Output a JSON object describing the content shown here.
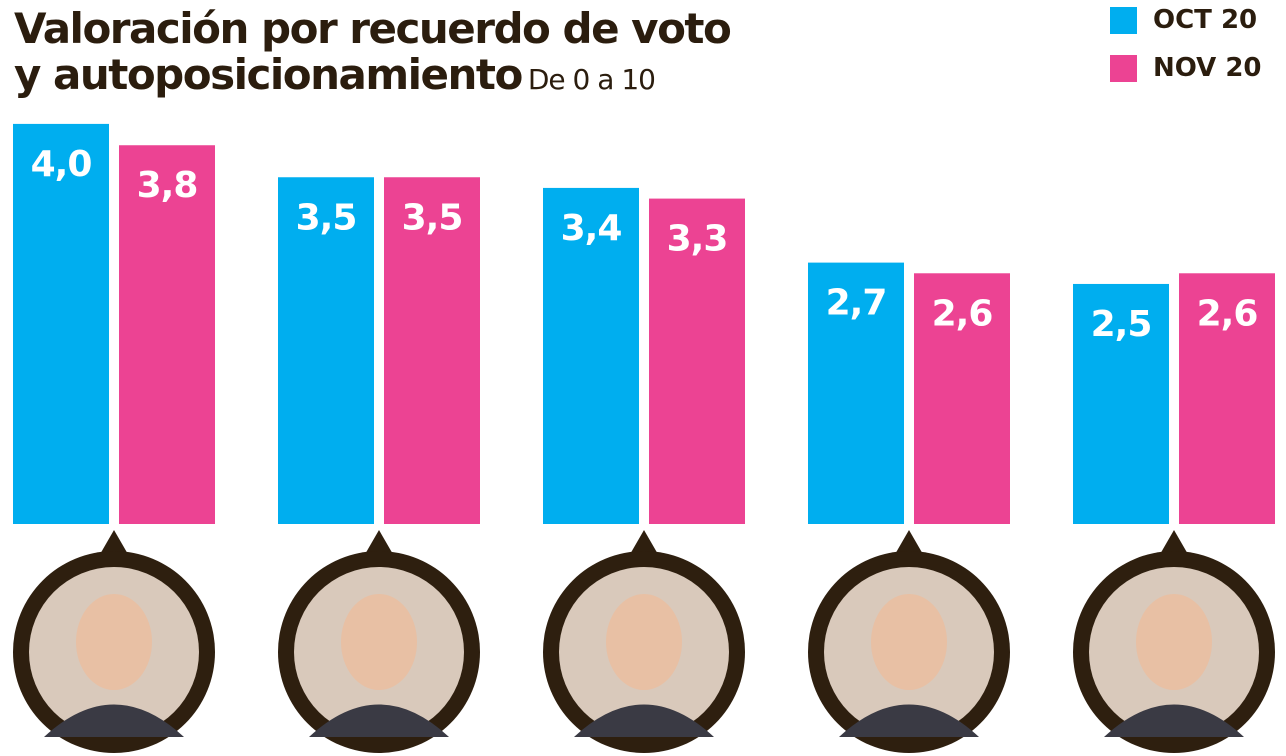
{
  "chart_data": {
    "type": "bar",
    "title": "Valoración por recuerdo de voto y autoposicionamiento",
    "title_line1": "Valoración por recuerdo de voto",
    "title_line2": "y autoposicionamiento",
    "subtitle": "De 0 a 10",
    "categories": [
      "",
      "",
      "",
      "",
      ""
    ],
    "series": [
      {
        "name": "OCT 20",
        "color": "#00AEEF",
        "values": [
          4.0,
          3.5,
          3.4,
          2.7,
          2.5
        ],
        "labels": [
          "4,0",
          "3,5",
          "3,4",
          "2,7",
          "2,5"
        ]
      },
      {
        "name": "NOV 20",
        "color": "#EC4393",
        "values": [
          3.8,
          3.5,
          3.3,
          2.6,
          2.6
        ],
        "labels": [
          "3,8",
          "3,5",
          "3,3",
          "2,6",
          "2,6"
        ]
      }
    ],
    "legend": "top-right",
    "grid": false,
    "category_images": [
      "portrait",
      "portrait",
      "portrait",
      "portrait",
      "portrait"
    ],
    "frame_color": "#2E1F0F"
  }
}
